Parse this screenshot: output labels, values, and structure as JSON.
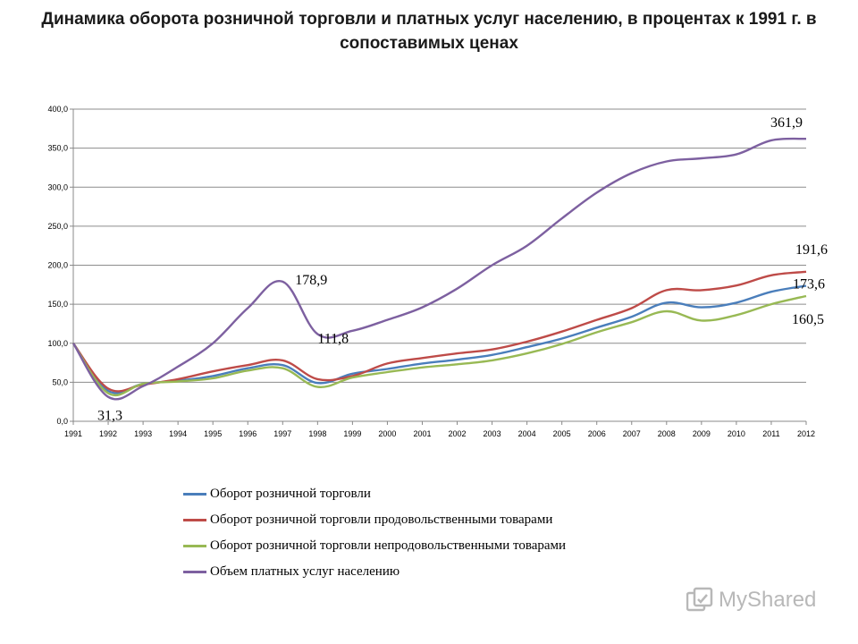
{
  "chart_data": {
    "type": "line",
    "title": "Динамика оборота розничной торговли и платных услуг населению, в процентах к 1991 г. в сопоставимых ценах",
    "xlabel": "",
    "ylabel": "",
    "ylim": [
      0,
      400
    ],
    "yticks": [
      "0,0",
      "50,0",
      "100,0",
      "150,0",
      "200,0",
      "250,0",
      "300,0",
      "350,0",
      "400,0"
    ],
    "categories": [
      "1991",
      "1992",
      "1993",
      "1994",
      "1995",
      "1996",
      "1997",
      "1998",
      "1999",
      "2000",
      "2001",
      "2002",
      "2003",
      "2004",
      "2005",
      "2006",
      "2007",
      "2008",
      "2009",
      "2010",
      "2011",
      "2012"
    ],
    "grid": true,
    "legend_position": "bottom",
    "series": [
      {
        "name": "Оборот розничной торговли",
        "color": "#4a7ebb",
        "values": [
          100,
          39,
          48,
          52,
          58,
          68,
          72,
          49,
          61,
          67,
          74,
          79,
          85,
          95,
          106,
          120,
          134,
          152,
          146,
          152,
          166,
          173.6
        ]
      },
      {
        "name": "Оборот розничной торговли продовольственными товарами",
        "color": "#be4b48",
        "values": [
          100,
          42,
          47,
          54,
          64,
          72,
          78,
          54,
          58,
          74,
          81,
          87,
          92,
          102,
          115,
          130,
          145,
          168,
          168,
          174,
          187,
          191.6
        ]
      },
      {
        "name": "Оборот розничной торговли непродовольственными товарами",
        "color": "#98b954",
        "values": [
          100,
          36,
          48,
          51,
          55,
          65,
          68,
          44,
          56,
          63,
          69,
          73,
          78,
          87,
          99,
          114,
          127,
          141,
          129,
          136,
          150,
          160.5
        ]
      },
      {
        "name": "Объем платных услуг населению",
        "color": "#7d60a0",
        "values": [
          100,
          31.3,
          45,
          70,
          100,
          145,
          178.9,
          111.8,
          116,
          130,
          146,
          170,
          200,
          225,
          260,
          293,
          318,
          333,
          337,
          342,
          360,
          361.9
        ]
      }
    ],
    "annotations": [
      {
        "text": "31,3",
        "x": "1992",
        "series": 3
      },
      {
        "text": "178,9",
        "x": "1997",
        "series": 3
      },
      {
        "text": "111,8",
        "x": "1998",
        "series": 3
      },
      {
        "text": "361,9",
        "x": "2012",
        "series": 3
      },
      {
        "text": "191,6",
        "x": "2012",
        "series": 1
      },
      {
        "text": "173,6",
        "x": "2012",
        "series": 0
      },
      {
        "text": "160,5",
        "x": "2012",
        "series": 2
      }
    ]
  },
  "watermark": {
    "text": "MyShared"
  }
}
